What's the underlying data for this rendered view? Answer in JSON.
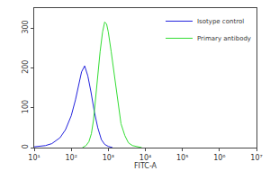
{
  "chart_data": {
    "type": "line",
    "x_label": "FITC-A",
    "log": "x",
    "legend": "top right",
    "xlim": [
      10,
      10000000
    ],
    "xticks": [
      {
        "value": 10,
        "label": "10¹"
      },
      {
        "value": 100,
        "label": "10²"
      },
      {
        "value": 1000,
        "label": "10³"
      },
      {
        "value": 10000,
        "label": "10⁴"
      },
      {
        "value": 100000,
        "label": "10⁵"
      },
      {
        "value": 1000000,
        "label": "10⁶"
      },
      {
        "value": 10000000,
        "label": "10⁷"
      }
    ],
    "ylim": [
      0,
      350
    ],
    "yticks": [
      0,
      100,
      200,
      300
    ],
    "series": [
      {
        "name": "Isotype control",
        "color": "#2222dd",
        "x": [
          10,
          20,
          30,
          50,
          70,
          100,
          130,
          160,
          190,
          230,
          280,
          340,
          420,
          520,
          650,
          800,
          1000,
          1300
        ],
        "values": [
          2,
          5,
          10,
          25,
          45,
          80,
          120,
          160,
          190,
          205,
          180,
          140,
          90,
          50,
          20,
          8,
          3,
          0
        ]
      },
      {
        "name": "Primary antibody",
        "color": "#33dd33",
        "x": [
          200,
          250,
          300,
          350,
          400,
          450,
          500,
          600,
          700,
          800,
          900,
          1000,
          1200,
          1500,
          1800,
          2200,
          2800,
          3500,
          4500,
          6000,
          8000
        ],
        "values": [
          0,
          5,
          15,
          35,
          70,
          120,
          170,
          240,
          290,
          315,
          310,
          290,
          240,
          170,
          110,
          60,
          30,
          12,
          5,
          2,
          0
        ]
      }
    ]
  }
}
